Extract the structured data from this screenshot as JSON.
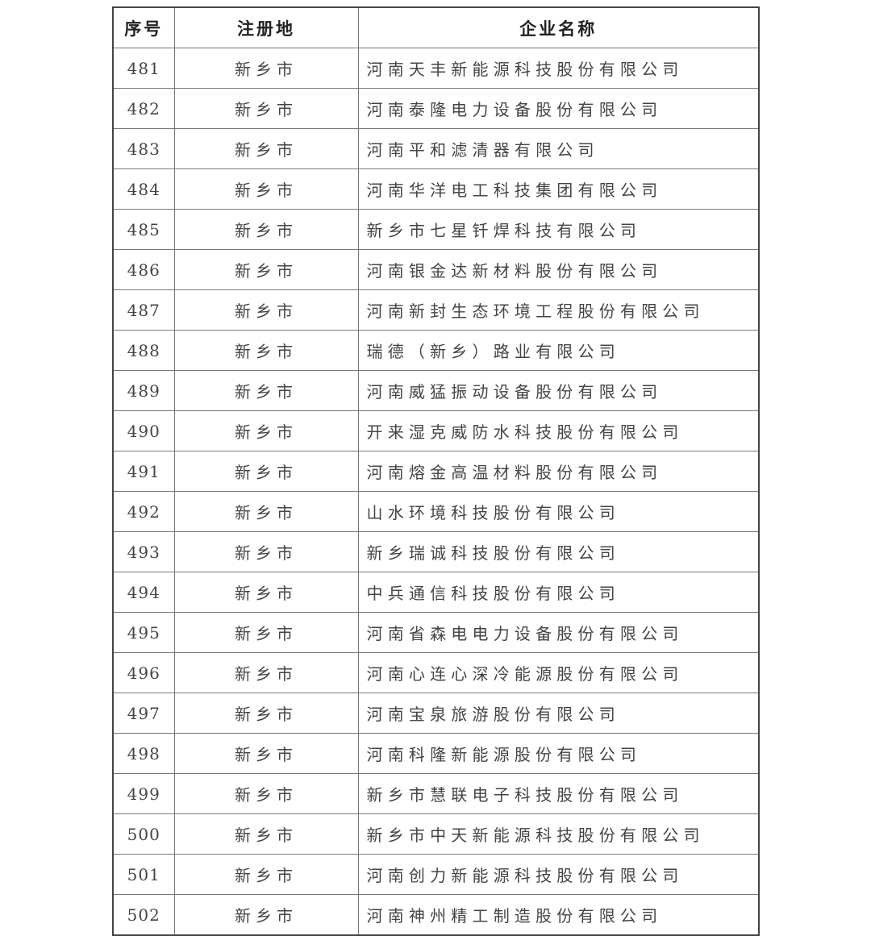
{
  "table": {
    "headers": [
      "序号",
      "注册地",
      "企业名称"
    ],
    "rows": [
      {
        "no": "481",
        "place": "新乡市",
        "name": "河南天丰新能源科技股份有限公司"
      },
      {
        "no": "482",
        "place": "新乡市",
        "name": "河南泰隆电力设备股份有限公司"
      },
      {
        "no": "483",
        "place": "新乡市",
        "name": "河南平和滤清器有限公司"
      },
      {
        "no": "484",
        "place": "新乡市",
        "name": "河南华洋电工科技集团有限公司"
      },
      {
        "no": "485",
        "place": "新乡市",
        "name": "新乡市七星钎焊科技有限公司"
      },
      {
        "no": "486",
        "place": "新乡市",
        "name": "河南银金达新材料股份有限公司"
      },
      {
        "no": "487",
        "place": "新乡市",
        "name": "河南新封生态环境工程股份有限公司"
      },
      {
        "no": "488",
        "place": "新乡市",
        "name": "瑞德（新乡）路业有限公司"
      },
      {
        "no": "489",
        "place": "新乡市",
        "name": "河南威猛振动设备股份有限公司"
      },
      {
        "no": "490",
        "place": "新乡市",
        "name": "开来湿克威防水科技股份有限公司"
      },
      {
        "no": "491",
        "place": "新乡市",
        "name": "河南熔金高温材料股份有限公司"
      },
      {
        "no": "492",
        "place": "新乡市",
        "name": "山水环境科技股份有限公司"
      },
      {
        "no": "493",
        "place": "新乡市",
        "name": "新乡瑞诚科技股份有限公司"
      },
      {
        "no": "494",
        "place": "新乡市",
        "name": "中兵通信科技股份有限公司"
      },
      {
        "no": "495",
        "place": "新乡市",
        "name": "河南省森电电力设备股份有限公司"
      },
      {
        "no": "496",
        "place": "新乡市",
        "name": "河南心连心深冷能源股份有限公司"
      },
      {
        "no": "497",
        "place": "新乡市",
        "name": "河南宝泉旅游股份有限公司"
      },
      {
        "no": "498",
        "place": "新乡市",
        "name": "河南科隆新能源股份有限公司"
      },
      {
        "no": "499",
        "place": "新乡市",
        "name": "新乡市慧联电子科技股份有限公司"
      },
      {
        "no": "500",
        "place": "新乡市",
        "name": "新乡市中天新能源科技股份有限公司"
      },
      {
        "no": "501",
        "place": "新乡市",
        "name": "河南创力新能源科技股份有限公司"
      },
      {
        "no": "502",
        "place": "新乡市",
        "name": "河南神州精工制造股份有限公司"
      }
    ]
  }
}
